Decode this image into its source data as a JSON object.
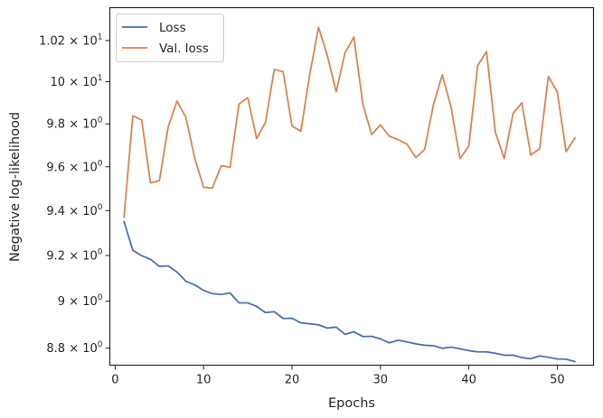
{
  "chart_data": {
    "type": "line",
    "title": "",
    "xlabel": "Epochs",
    "ylabel": "Negative log-likelihood",
    "xlim": [
      -0.6,
      54.1
    ],
    "ylim": [
      8.728,
      10.362
    ],
    "yscale": "log",
    "grid": false,
    "legend_position": "top-left",
    "x": [
      1,
      2,
      3,
      4,
      5,
      6,
      7,
      8,
      9,
      10,
      11,
      12,
      13,
      14,
      15,
      16,
      17,
      18,
      19,
      20,
      21,
      22,
      23,
      24,
      25,
      26,
      27,
      28,
      29,
      30,
      31,
      32,
      33,
      34,
      35,
      36,
      37,
      38,
      39,
      40,
      41,
      42,
      43,
      44,
      45,
      46,
      47,
      48,
      49,
      50,
      51,
      52
    ],
    "series": [
      {
        "name": "Loss",
        "color": "#4c72b0",
        "values": [
          9.351,
          9.223,
          9.199,
          9.183,
          9.152,
          9.154,
          9.127,
          9.087,
          9.071,
          9.047,
          9.033,
          9.029,
          9.036,
          8.993,
          8.993,
          8.978,
          8.951,
          8.955,
          8.926,
          8.927,
          8.907,
          8.903,
          8.899,
          8.885,
          8.889,
          8.858,
          8.869,
          8.849,
          8.85,
          8.839,
          8.822,
          8.833,
          8.826,
          8.818,
          8.812,
          8.81,
          8.799,
          8.804,
          8.797,
          8.789,
          8.784,
          8.784,
          8.778,
          8.77,
          8.77,
          8.76,
          8.755,
          8.767,
          8.761,
          8.754,
          8.753,
          8.743
        ]
      },
      {
        "name": "Val. loss",
        "color": "#dd8452",
        "values": [
          9.37,
          9.838,
          9.818,
          9.526,
          9.536,
          9.785,
          9.908,
          9.83,
          9.64,
          9.506,
          9.503,
          9.605,
          9.598,
          9.893,
          9.924,
          9.731,
          9.807,
          10.06,
          10.048,
          9.79,
          9.765,
          10.033,
          10.265,
          10.126,
          9.952,
          10.14,
          10.217,
          9.895,
          9.75,
          9.795,
          9.742,
          9.726,
          9.705,
          9.643,
          9.68,
          9.891,
          10.033,
          9.877,
          9.638,
          9.696,
          10.078,
          10.146,
          9.76,
          9.638,
          9.849,
          9.9,
          9.654,
          9.683,
          10.026,
          9.951,
          9.67,
          9.734
        ]
      }
    ],
    "yticks": [
      {
        "value": 8.8,
        "mantissa": "8.8",
        "sup": "0"
      },
      {
        "value": 9.0,
        "mantissa": "9",
        "sup": "0"
      },
      {
        "value": 9.2,
        "mantissa": "9.2",
        "sup": "0"
      },
      {
        "value": 9.4,
        "mantissa": "9.4",
        "sup": "0"
      },
      {
        "value": 9.6,
        "mantissa": "9.6",
        "sup": "0"
      },
      {
        "value": 9.8,
        "mantissa": "9.8",
        "sup": "0"
      },
      {
        "value": 10.0,
        "mantissa": "10",
        "sup": "1"
      },
      {
        "value": 10.2,
        "mantissa": "1.02",
        "sup": "1"
      }
    ],
    "xticks": [
      0,
      10,
      20,
      30,
      40,
      50
    ]
  }
}
